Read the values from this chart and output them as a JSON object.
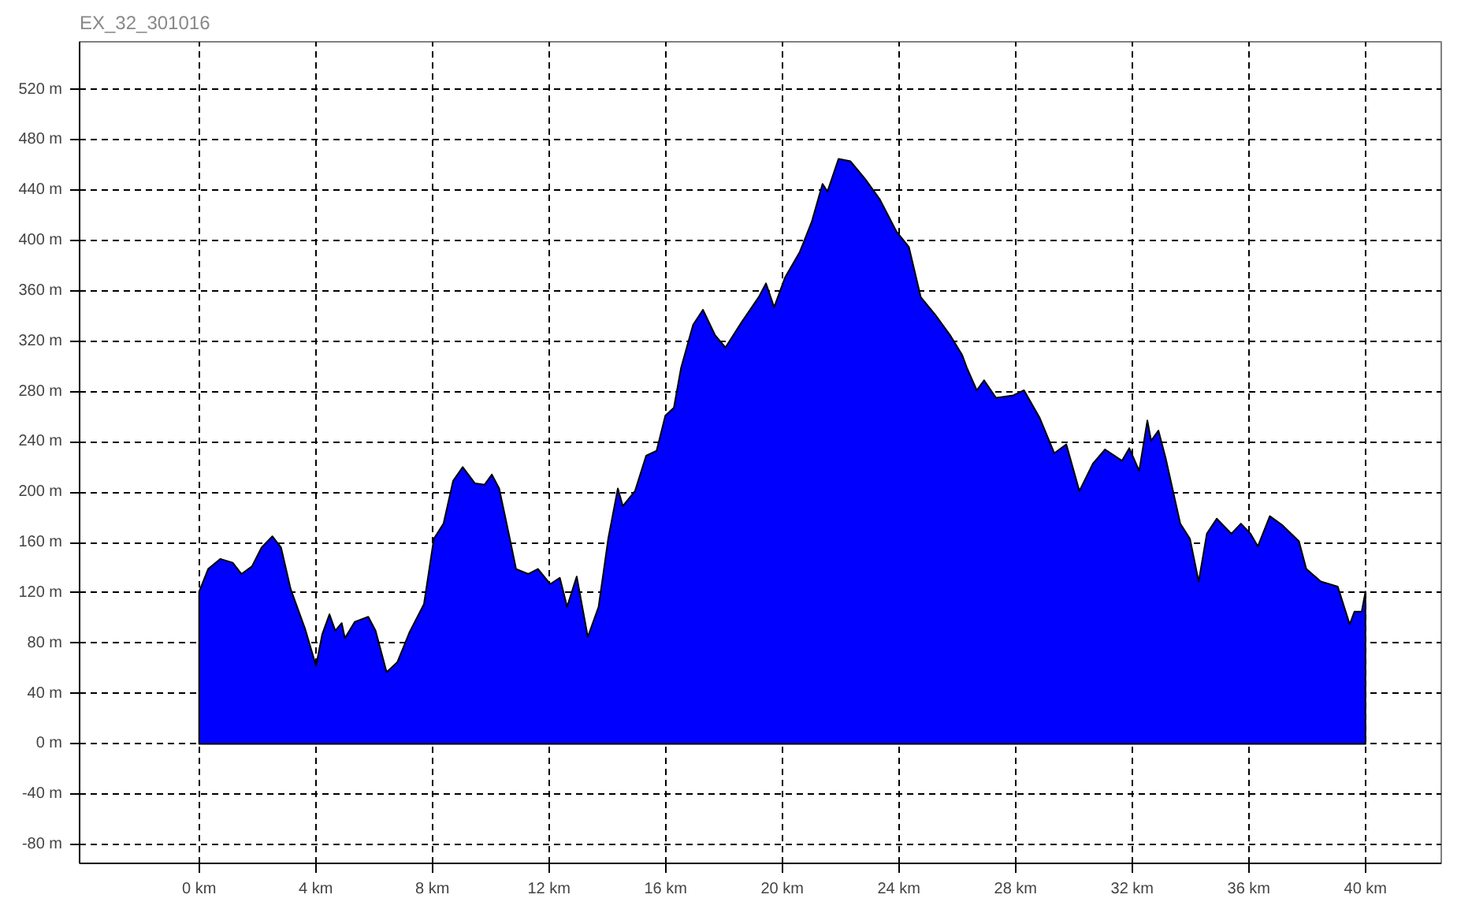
{
  "chart_data": {
    "type": "area",
    "title": "EX_32_301016",
    "x": [
      0,
      0.31,
      0.73,
      1.15,
      1.45,
      1.81,
      2.14,
      2.51,
      2.81,
      3.14,
      3.64,
      4.01,
      4.22,
      4.47,
      4.67,
      4.89,
      5.0,
      5.34,
      5.8,
      6.05,
      6.43,
      6.8,
      7.22,
      7.71,
      8.05,
      8.38,
      8.71,
      9.04,
      9.46,
      9.79,
      10.04,
      10.29,
      10.62,
      10.87,
      11.29,
      11.62,
      12.04,
      12.37,
      12.62,
      12.95,
      13.33,
      13.7,
      14.03,
      14.36,
      14.53,
      14.95,
      15.33,
      15.69,
      15.99,
      16.28,
      16.53,
      16.94,
      17.28,
      17.69,
      18.05,
      18.6,
      19.19,
      19.44,
      19.72,
      20.1,
      20.6,
      21.01,
      21.38,
      21.55,
      21.93,
      22.34,
      22.84,
      23.34,
      23.92,
      24.34,
      24.75,
      25.25,
      25.75,
      26.17,
      26.33,
      26.67,
      26.92,
      27.33,
      27.92,
      28.29,
      28.83,
      29.33,
      29.74,
      30.19,
      30.66,
      31.07,
      31.65,
      31.9,
      32.24,
      32.52,
      32.65,
      32.9,
      33.15,
      33.65,
      33.98,
      34.28,
      34.56,
      34.9,
      35.4,
      35.73,
      36.06,
      36.31,
      36.72,
      37.14,
      37.72,
      37.97,
      38.47,
      39.05,
      39.46,
      39.62,
      39.87,
      40.0
    ],
    "series": [
      {
        "color": "#0000ff",
        "values": [
          121,
          139,
          147,
          144,
          135,
          141,
          156,
          165,
          156,
          123,
          91,
          62,
          87,
          103,
          90,
          96,
          84,
          97,
          101,
          90,
          57,
          65,
          89,
          111,
          163,
          175,
          209,
          220,
          207,
          206,
          214,
          203,
          167,
          139,
          135,
          139,
          127,
          132,
          109,
          133,
          85,
          109,
          163,
          203,
          189,
          201,
          229,
          233,
          261,
          267,
          299,
          333,
          345,
          325,
          315,
          335,
          355,
          366,
          347,
          371,
          391,
          415,
          445,
          439,
          465,
          463,
          449,
          433,
          407,
          395,
          355,
          341,
          325,
          309,
          299,
          281,
          289,
          275,
          277,
          281,
          259,
          231,
          238,
          201,
          223,
          234,
          225,
          235,
          217,
          257,
          241,
          249,
          227,
          175,
          163,
          129,
          167,
          179,
          167,
          175,
          167,
          157,
          181,
          174,
          161,
          139,
          129,
          125,
          95,
          105,
          105,
          121
        ]
      }
    ],
    "xlim": [
      -4.1,
      42.6
    ],
    "ylim": [
      -95,
      558
    ],
    "xticks": [
      {
        "value": 0,
        "label": "0 km"
      },
      {
        "value": 4,
        "label": "4 km"
      },
      {
        "value": 8,
        "label": "8 km"
      },
      {
        "value": 12,
        "label": "12 km"
      },
      {
        "value": 16,
        "label": "16 km"
      },
      {
        "value": 20,
        "label": "20 km"
      },
      {
        "value": 24,
        "label": "24 km"
      },
      {
        "value": 28,
        "label": "28 km"
      },
      {
        "value": 32,
        "label": "32 km"
      },
      {
        "value": 36,
        "label": "36 km"
      },
      {
        "value": 40,
        "label": "40 km"
      }
    ],
    "yticks": [
      {
        "value": -80,
        "label": "-80 m"
      },
      {
        "value": -40,
        "label": "-40 m"
      },
      {
        "value": 0,
        "label": "0 m"
      },
      {
        "value": 40,
        "label": "40 m"
      },
      {
        "value": 80,
        "label": "80 m"
      },
      {
        "value": 120,
        "label": "120 m"
      },
      {
        "value": 160,
        "label": "160 m"
      },
      {
        "value": 200,
        "label": "200 m"
      },
      {
        "value": 240,
        "label": "240 m"
      },
      {
        "value": 280,
        "label": "280 m"
      },
      {
        "value": 320,
        "label": "320 m"
      },
      {
        "value": 360,
        "label": "360 m"
      },
      {
        "value": 400,
        "label": "400 m"
      },
      {
        "value": 440,
        "label": "440 m"
      },
      {
        "value": 480,
        "label": "480 m"
      },
      {
        "value": 520,
        "label": "520 m"
      }
    ],
    "grid": true
  }
}
